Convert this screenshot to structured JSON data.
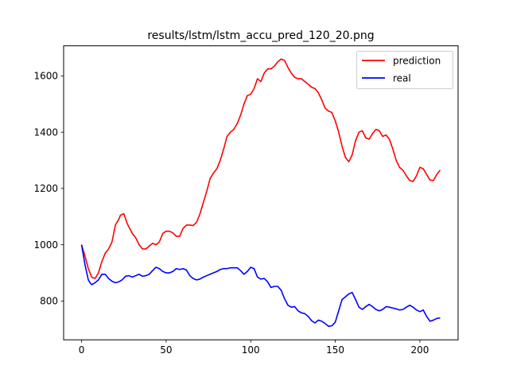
{
  "chart_data": {
    "type": "line",
    "title": "results/lstm/lstm_accu_pred_120_20.png",
    "xlabel": "",
    "ylabel": "",
    "xlim": [
      -10.6,
      222.6
    ],
    "ylim": [
      662,
      1707
    ],
    "xticks": [
      0,
      50,
      100,
      150,
      200
    ],
    "yticks": [
      800,
      1000,
      1200,
      1400,
      1600
    ],
    "grid": false,
    "legend_position": "upper-right",
    "series": [
      {
        "name": "prediction",
        "color": "#ff0000",
        "x": [
          0,
          2,
          4,
          6,
          8,
          10,
          12,
          14,
          16,
          18,
          20,
          22,
          23,
          25,
          27,
          30,
          32,
          34,
          36,
          38,
          40,
          42,
          44,
          46,
          48,
          50,
          52,
          54,
          56,
          58,
          60,
          62,
          64,
          66,
          68,
          70,
          72,
          74,
          76,
          78,
          80,
          82,
          84,
          86,
          88,
          90,
          92,
          94,
          96,
          98,
          100,
          102,
          104,
          106,
          108,
          110,
          112,
          114,
          116,
          118,
          120,
          122,
          124,
          126,
          128,
          130,
          132,
          134,
          136,
          138,
          140,
          142,
          144,
          146,
          148,
          150,
          152,
          154,
          156,
          158,
          160,
          162,
          164,
          166,
          168,
          170,
          172,
          174,
          176,
          178,
          180,
          182,
          184,
          186,
          188,
          190,
          192,
          194,
          196,
          198,
          200,
          202,
          204,
          206,
          208,
          210,
          212
        ],
        "y": [
          1000,
          960,
          915,
          885,
          880,
          900,
          940,
          970,
          985,
          1010,
          1070,
          1090,
          1105,
          1110,
          1075,
          1040,
          1025,
          1000,
          985,
          985,
          995,
          1005,
          1000,
          1010,
          1040,
          1048,
          1048,
          1042,
          1030,
          1030,
          1058,
          1070,
          1070,
          1068,
          1080,
          1110,
          1150,
          1190,
          1235,
          1255,
          1270,
          1300,
          1340,
          1385,
          1400,
          1410,
          1430,
          1460,
          1500,
          1530,
          1535,
          1555,
          1590,
          1580,
          1610,
          1625,
          1625,
          1635,
          1650,
          1660,
          1655,
          1630,
          1610,
          1595,
          1590,
          1590,
          1580,
          1570,
          1560,
          1555,
          1540,
          1515,
          1485,
          1475,
          1470,
          1440,
          1400,
          1350,
          1310,
          1295,
          1320,
          1370,
          1400,
          1405,
          1380,
          1375,
          1395,
          1410,
          1405,
          1385,
          1390,
          1375,
          1340,
          1300,
          1275,
          1265,
          1245,
          1228,
          1225,
          1245,
          1275,
          1270,
          1250,
          1230,
          1228,
          1250,
          1265
        ]
      },
      {
        "name": "real",
        "color": "#0000ff",
        "x": [
          0,
          2,
          4,
          5,
          6,
          8,
          10,
          12,
          14,
          16,
          18,
          20,
          22,
          24,
          26,
          28,
          30,
          32,
          34,
          36,
          38,
          40,
          42,
          44,
          46,
          48,
          50,
          52,
          54,
          56,
          58,
          60,
          62,
          64,
          66,
          68,
          70,
          72,
          74,
          76,
          78,
          80,
          82,
          84,
          86,
          88,
          90,
          92,
          94,
          96,
          98,
          100,
          102,
          104,
          106,
          108,
          110,
          112,
          114,
          116,
          118,
          120,
          122,
          124,
          126,
          128,
          130,
          132,
          134,
          136,
          138,
          140,
          142,
          144,
          146,
          148,
          150,
          152,
          154,
          156,
          158,
          160,
          162,
          164,
          166,
          168,
          170,
          172,
          174,
          176,
          178,
          180,
          182,
          184,
          186,
          188,
          190,
          192,
          194,
          196,
          198,
          200,
          202,
          204,
          206,
          208,
          210,
          212
        ],
        "y": [
          1000,
          930,
          875,
          865,
          858,
          865,
          875,
          895,
          895,
          880,
          870,
          865,
          868,
          875,
          888,
          890,
          885,
          890,
          895,
          888,
          890,
          895,
          908,
          920,
          915,
          905,
          900,
          900,
          905,
          915,
          912,
          915,
          910,
          890,
          880,
          875,
          878,
          885,
          890,
          895,
          900,
          905,
          912,
          915,
          915,
          918,
          918,
          918,
          908,
          895,
          905,
          920,
          915,
          885,
          878,
          880,
          868,
          848,
          852,
          852,
          838,
          808,
          785,
          778,
          780,
          765,
          758,
          755,
          745,
          730,
          722,
          732,
          728,
          720,
          710,
          712,
          725,
          765,
          805,
          815,
          825,
          830,
          805,
          778,
          770,
          780,
          788,
          780,
          770,
          765,
          770,
          780,
          778,
          775,
          772,
          768,
          770,
          778,
          785,
          778,
          768,
          762,
          768,
          745,
          728,
          732,
          738,
          740
        ]
      }
    ]
  }
}
